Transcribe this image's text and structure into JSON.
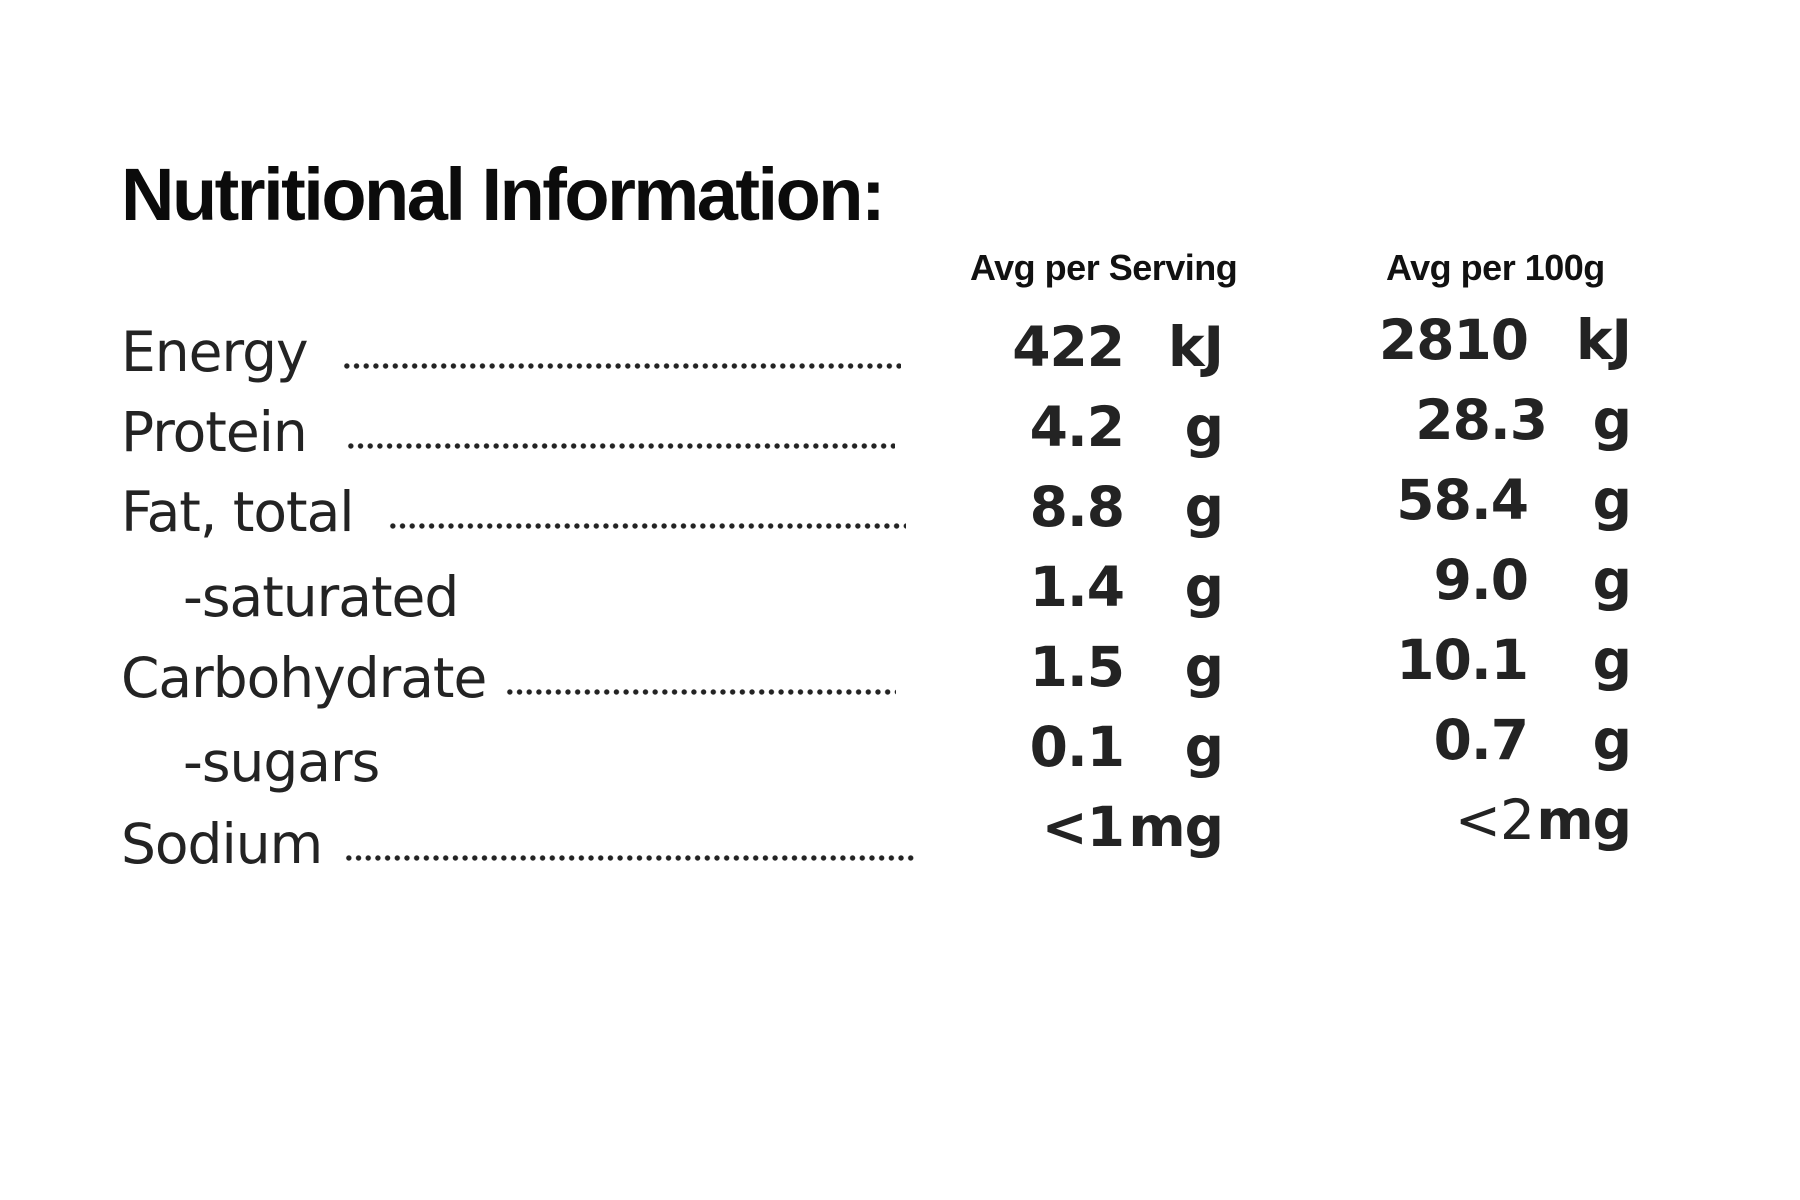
{
  "title": "Nutritional Information:",
  "columns": {
    "serving": "Avg per Serving",
    "per100g": "Avg per 100g"
  },
  "rows": [
    {
      "label": "Energy",
      "serving": {
        "value": "422",
        "unit": "kJ"
      },
      "per100g": {
        "value": "2810",
        "unit": "kJ"
      }
    },
    {
      "label": "Protein",
      "serving": {
        "value": "4.2",
        "unit": "g"
      },
      "per100g": {
        "value": "28.3",
        "unit": "g"
      }
    },
    {
      "label": "Fat, total",
      "serving": {
        "value": "8.8",
        "unit": "g"
      },
      "per100g": {
        "value": "58.4",
        "unit": "g"
      }
    },
    {
      "label": "-saturated",
      "serving": {
        "value": "1.4",
        "unit": "g"
      },
      "per100g": {
        "value": "9.0",
        "unit": "g"
      }
    },
    {
      "label": "Carbohydrate",
      "serving": {
        "value": "1.5",
        "unit": "g"
      },
      "per100g": {
        "value": "10.1",
        "unit": "g"
      }
    },
    {
      "label": "-sugars",
      "serving": {
        "value": "0.1",
        "unit": "g"
      },
      "per100g": {
        "value": "0.7",
        "unit": "g"
      }
    },
    {
      "label": "Sodium",
      "serving": {
        "value": "<1",
        "unit": "mg"
      },
      "per100g": {
        "value": "<2",
        "unit": "mg"
      }
    }
  ]
}
